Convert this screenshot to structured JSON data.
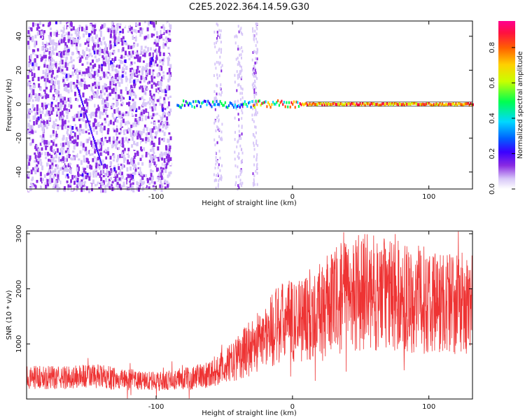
{
  "figure_title": "C2E5.2022.364.14.59.G30",
  "chart_data": [
    {
      "type": "heatmap",
      "xlabel": "Height of straight line (km)",
      "ylabel": "Frequency (Hz)",
      "xlim": [
        -195,
        132
      ],
      "ylim": [
        -50,
        49
      ],
      "xticks": [
        -100,
        0,
        100
      ],
      "yticks": [
        40,
        20,
        0,
        -20,
        -40
      ],
      "colorbar": {
        "label": "Normalized spectral amplitude",
        "range": [
          0,
          0.95
        ],
        "ticks": [
          0.0,
          0.2,
          0.4,
          0.6,
          0.8
        ],
        "colors": [
          "#ffffff",
          "#d8c8f8",
          "#8a2be2",
          "#3b00ff",
          "#0060ff",
          "#00d8ff",
          "#00ff50",
          "#c8ff00",
          "#ffd000",
          "#ff6000",
          "#ff1040",
          "#ff0090"
        ]
      },
      "features": [
        {
          "name": "scattered noise",
          "x_range": [
            -195,
            -90
          ],
          "freq_range": [
            -50,
            49
          ],
          "amplitude": 0.1
        },
        {
          "name": "carrier line",
          "x_range": [
            -85,
            132
          ],
          "freq": 0,
          "amplitude": 0.85
        }
      ]
    },
    {
      "type": "line",
      "xlabel": "Height of straight line (km)",
      "ylabel": "SNR (10 * v/v)",
      "xlim": [
        -195,
        132
      ],
      "ylim": [
        0,
        3050
      ],
      "xticks": [
        -100,
        0,
        100
      ],
      "yticks": [
        1000,
        2000,
        3000
      ],
      "color": "#ee3333",
      "trend": {
        "x": [
          -195,
          -170,
          -150,
          -130,
          -110,
          -95,
          -80,
          -65,
          -55,
          -45,
          -38,
          -30,
          -20,
          -10,
          0,
          10,
          20,
          30,
          40,
          50,
          60,
          70,
          80,
          90,
          100,
          110,
          120,
          132
        ],
        "mean": [
          400,
          380,
          420,
          380,
          330,
          320,
          360,
          430,
          520,
          650,
          800,
          950,
          1150,
          1350,
          1420,
          1500,
          1600,
          1750,
          1900,
          1950,
          1920,
          1900,
          1850,
          1800,
          1800,
          1750,
          1750,
          1700
        ]
      }
    }
  ]
}
